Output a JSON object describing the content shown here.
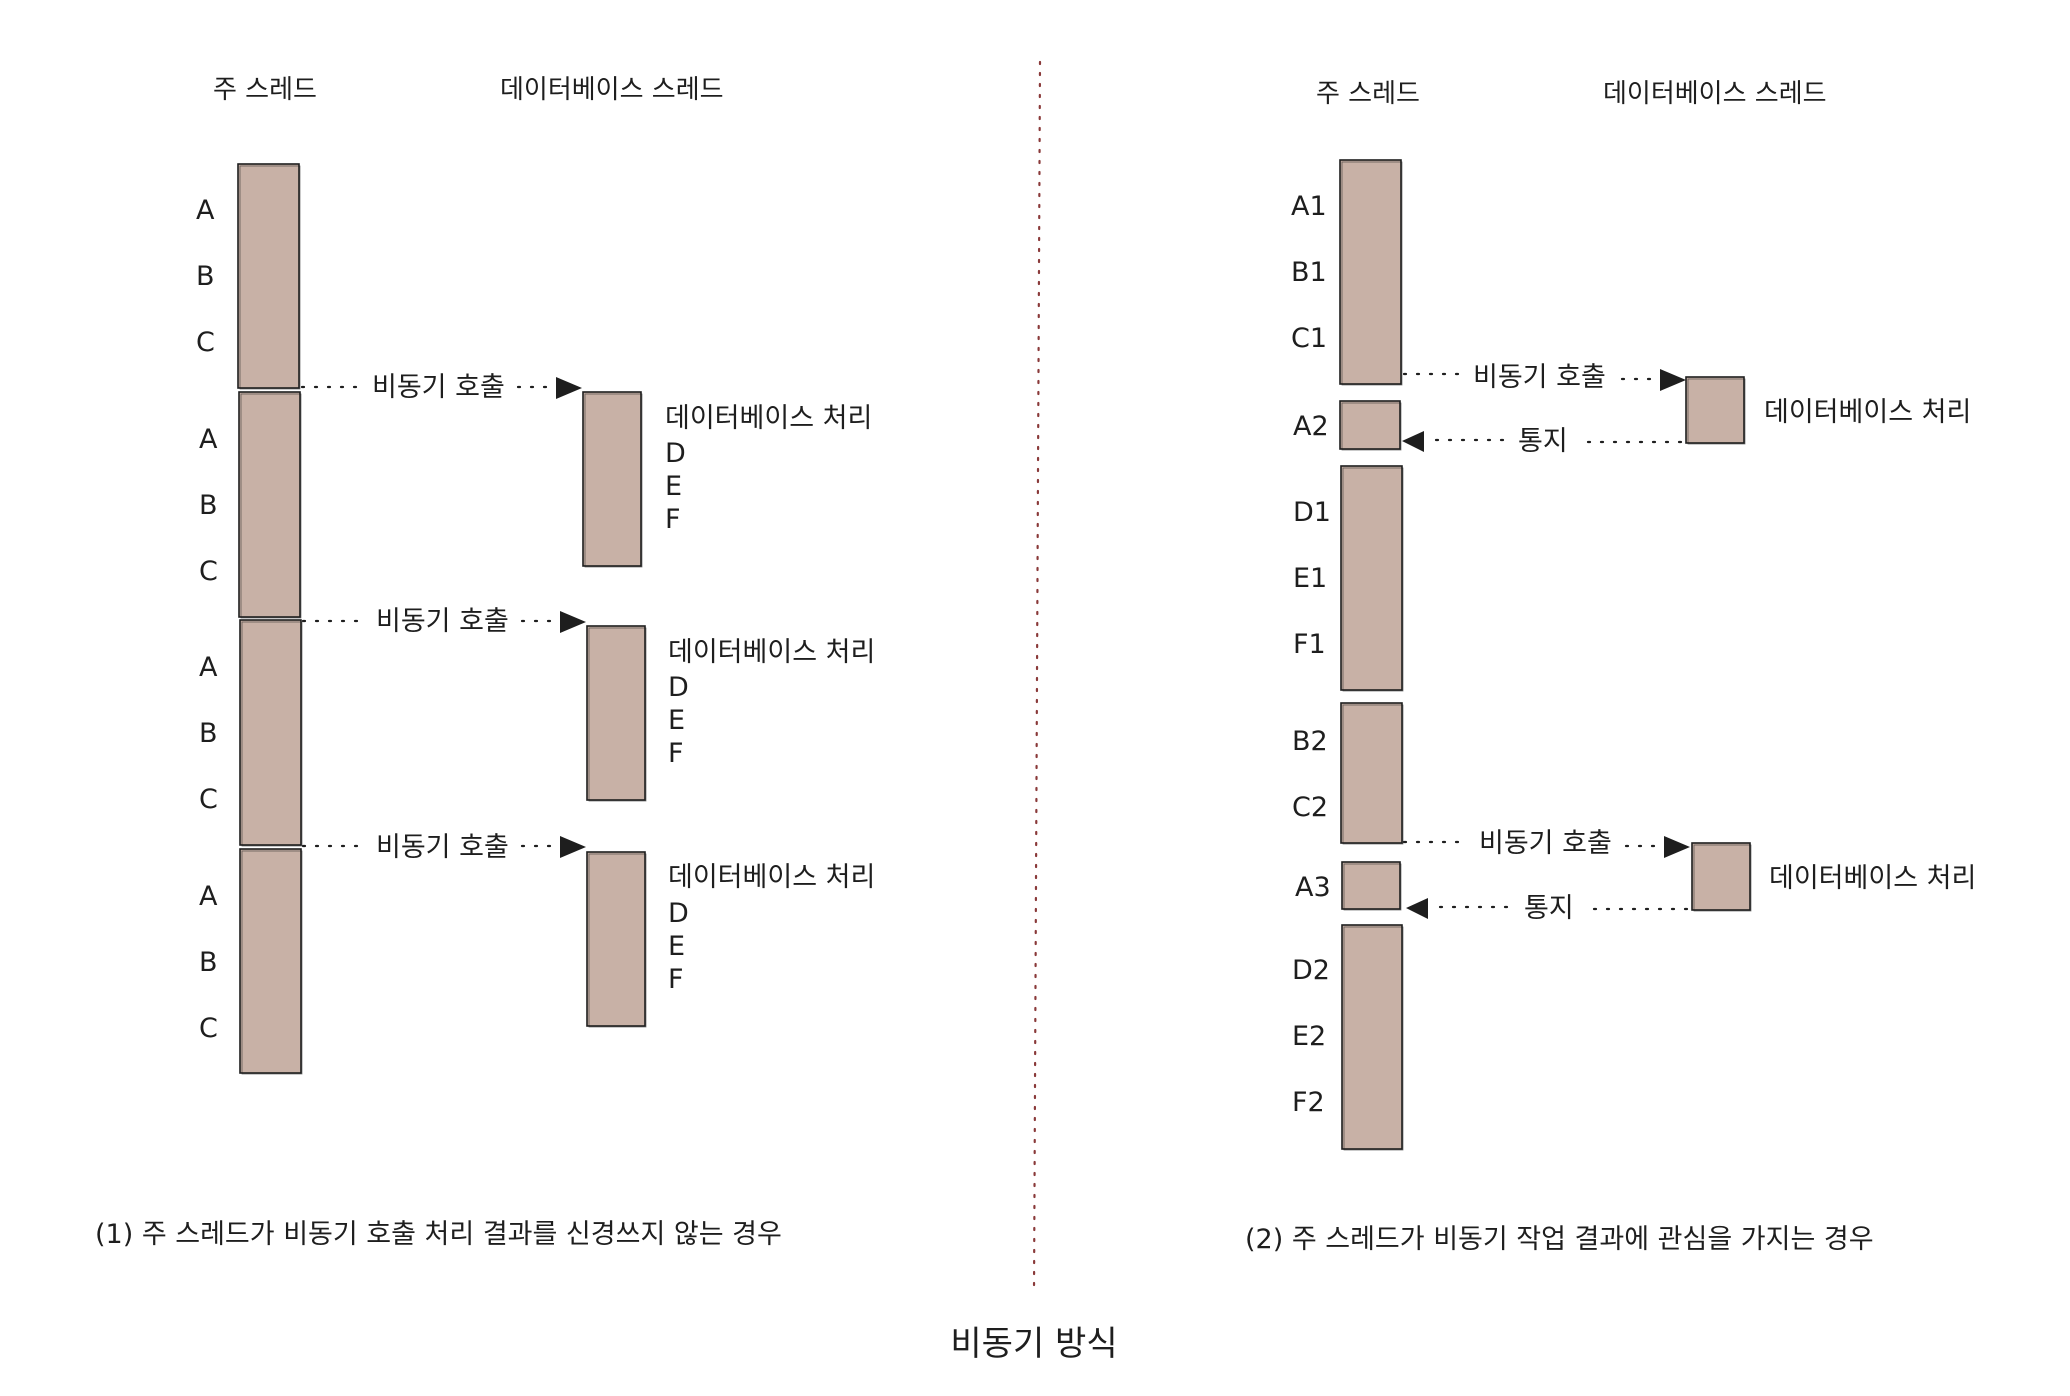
{
  "colors": {
    "box_fill": "#c8b1a6",
    "stroke": "#1e1e1e",
    "divider": "#8a3a3a"
  },
  "title": "비동기 방식",
  "left": {
    "main_thread_header": "주 스레드",
    "db_thread_header": "데이터베이스 스레드",
    "caption": "(1) 주 스레드가 비동기 호출 처리 결과를 신경쓰지 않는 경우",
    "main_blocks": [
      {
        "labels": [
          "A",
          "B",
          "C"
        ]
      },
      {
        "labels": [
          "A",
          "B",
          "C"
        ]
      },
      {
        "labels": [
          "A",
          "B",
          "C"
        ]
      },
      {
        "labels": [
          "A",
          "B",
          "C"
        ]
      }
    ],
    "calls": [
      {
        "label": "비동기 호출"
      },
      {
        "label": "비동기 호출"
      },
      {
        "label": "비동기 호출"
      }
    ],
    "db_blocks": [
      {
        "title": "데이터베이스 처리",
        "labels": [
          "D",
          "E",
          "F"
        ]
      },
      {
        "title": "데이터베이스 처리",
        "labels": [
          "D",
          "E",
          "F"
        ]
      },
      {
        "title": "데이터베이스 처리",
        "labels": [
          "D",
          "E",
          "F"
        ]
      }
    ]
  },
  "right": {
    "main_thread_header": "주 스레드",
    "db_thread_header": "데이터베이스 스레드",
    "caption": "(2) 주 스레드가 비동기 작업 결과에 관심을 가지는 경우",
    "main_blocks": [
      {
        "labels": [
          "A1",
          "B1",
          "C1"
        ]
      },
      {
        "labels": [
          "A2"
        ]
      },
      {
        "labels": [
          "D1",
          "E1",
          "F1"
        ]
      },
      {
        "labels": [
          "B2",
          "C2"
        ]
      },
      {
        "labels": [
          "A3"
        ]
      },
      {
        "labels": [
          "D2",
          "E2",
          "F2"
        ]
      }
    ],
    "calls": [
      {
        "label": "비동기 호출",
        "notify_label": "통지"
      },
      {
        "label": "비동기 호출",
        "notify_label": "통지"
      }
    ],
    "db_blocks": [
      {
        "title": "데이터베이스 처리"
      },
      {
        "title": "데이터베이스 처리"
      }
    ]
  }
}
